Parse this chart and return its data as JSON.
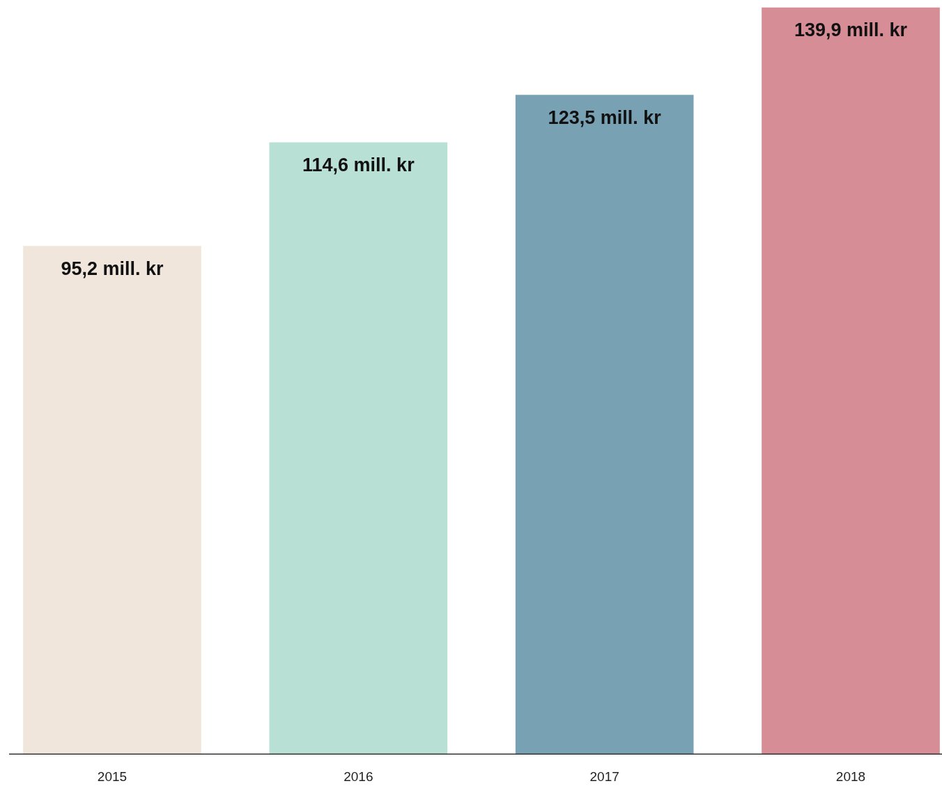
{
  "chart_data": {
    "type": "bar",
    "categories": [
      "2015",
      "2016",
      "2017",
      "2018"
    ],
    "values": [
      95.2,
      114.6,
      123.5,
      139.9
    ],
    "colors": [
      "#f1e6dc",
      "#b8e0d5",
      "#78a2b4",
      "#d68d95"
    ],
    "value_labels": [
      "95,2 mill. kr",
      "114,6 mill. kr",
      "123,5 mill. kr",
      "139,9 mill. kr"
    ]
  }
}
